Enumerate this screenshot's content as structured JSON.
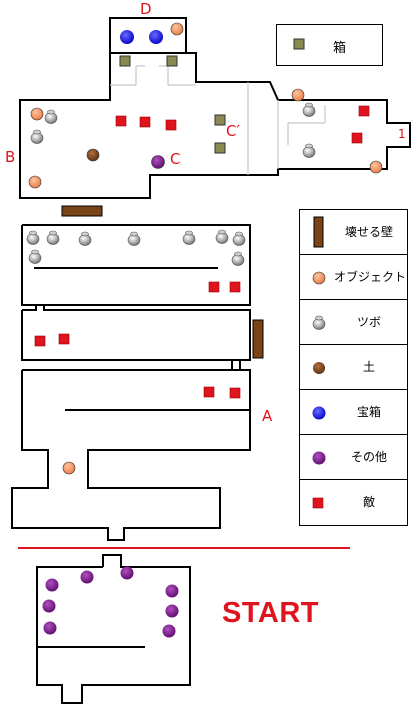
{
  "markers": [
    {
      "id": "D",
      "label": "D"
    },
    {
      "id": "B",
      "label": "B"
    },
    {
      "id": "C",
      "label": "C"
    },
    {
      "id": "C_prime",
      "label": "C′"
    },
    {
      "id": "A",
      "label": "A"
    },
    {
      "id": "one",
      "label": "1"
    }
  ],
  "start_label": "START",
  "legend_small": {
    "label": "箱",
    "icon": "box-icon",
    "color": "#8a8a50"
  },
  "legend": [
    {
      "label": "壊せる壁",
      "icon": "breakable-wall-icon",
      "color": "#7a4416"
    },
    {
      "label": "オブジェクト",
      "icon": "object-icon",
      "color": "#f08a58"
    },
    {
      "label": "ツボ",
      "icon": "pot-icon",
      "color": "#9a9a9a"
    },
    {
      "label": "土",
      "icon": "soil-icon",
      "color": "#7a4416"
    },
    {
      "label": "宝箱",
      "icon": "treasure-chest-icon",
      "color": "#1010e0"
    },
    {
      "label": "その他",
      "icon": "other-icon",
      "color": "#7a1480"
    },
    {
      "label": "敵",
      "icon": "enemy-icon",
      "color": "#e0141e"
    }
  ],
  "colors": {
    "wall": "#000000",
    "divider": "#e0141e",
    "inner_line": "#c8c8c8"
  }
}
